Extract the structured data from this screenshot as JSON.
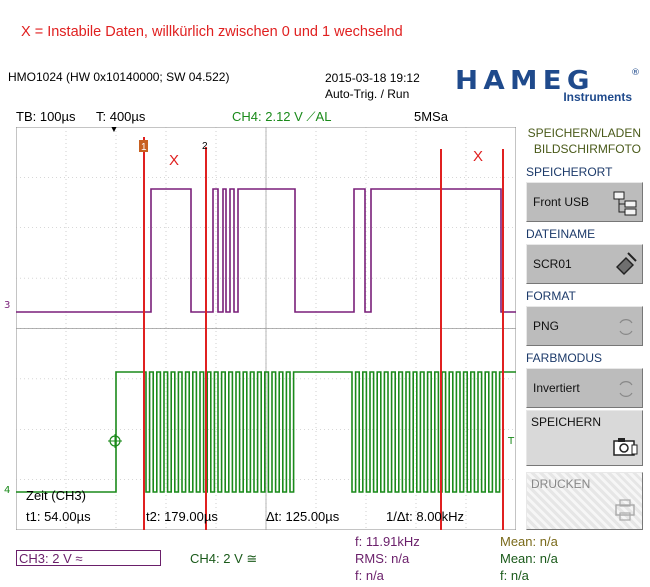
{
  "annotation": "X = Instabile Daten, willkürlich zwischen 0 und 1 wechselnd",
  "header": {
    "device": "HMO1024 (HW 0x10140000; SW 04.522)",
    "date_time": "2015-03-18 19:12",
    "trigger_mode": "Auto-Trig. / Run",
    "logo_text": "HAMEG",
    "logo_reg": "®",
    "logo_sub": "Instruments"
  },
  "status": {
    "timebase": "TB: 100µs",
    "trigger_time": "T: 400µs",
    "ch4_trigger": "CH4: 2.12 V ⟋AL",
    "sample_rate": "5MSa"
  },
  "scope": {
    "cursor1_marker": "1",
    "cursor2_marker": "2",
    "x_marks": [
      "X",
      "X"
    ],
    "ch3_level_marker": "3",
    "ch4_level_marker": "4",
    "trigger_right_marker": "T",
    "colors": {
      "ch3": "#7a1f7a",
      "ch4": "#1a8a1a",
      "cursor": "#e02020",
      "grid": "#b0b0b0",
      "annotation": "#e02020"
    }
  },
  "measurements": {
    "source": "Zeit (CH3)",
    "t1": "t1: 54.00µs",
    "t2": "t2: 179.00µs",
    "dt": "Δt: 125.00µs",
    "inv_dt": "1/Δt: 8.00kHz"
  },
  "bottom": {
    "ch3": "CH3: 2 V ≈",
    "ch4": "CH4: 2 V ≅",
    "freq": "f: 11.91kHz",
    "rms": "RMS: n/a",
    "f2": "f: n/a",
    "mean1": "Mean: n/a",
    "mean2": "Mean: n/a",
    "f3": "f: n/a"
  },
  "menu": {
    "title1": "SPEICHERN/LADEN",
    "title2": "BILDSCHIRMFOTO",
    "location_label": "SPEICHERORT",
    "location_value": "Front USB",
    "filename_label": "DATEINAME",
    "filename_value": "SCR01",
    "format_label": "FORMAT",
    "format_value": "PNG",
    "colormode_label": "FARBMODUS",
    "colormode_value": "Invertiert",
    "save_label": "SPEICHERN",
    "print_label": "DRUCKEN"
  }
}
